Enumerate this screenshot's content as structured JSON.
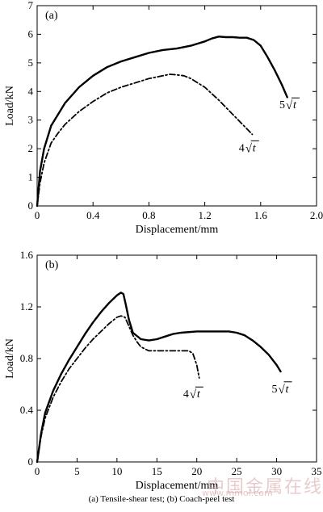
{
  "caption": "(a) Tensile-shear test; (b) Coach-peel test",
  "watermark": {
    "cn": "中国金属在线",
    "domain": "www.mmol.com"
  },
  "chart_data": [
    {
      "type": "line",
      "panel_label": "(a)",
      "xlabel": "Displacement/mm",
      "ylabel": "Load/kN",
      "xlim": [
        0,
        2.0
      ],
      "ylim": [
        0,
        7
      ],
      "xticks": [
        0,
        0.4,
        0.8,
        1.2,
        1.6,
        2.0
      ],
      "xtick_labels": [
        "0",
        "0.4",
        "0.8",
        "1.2",
        "1.6",
        "2.0"
      ],
      "yticks": [
        0,
        1,
        2,
        3,
        4,
        5,
        6,
        7
      ],
      "ytick_labels": [
        "0",
        "1",
        "2",
        "3",
        "4",
        "5",
        "6",
        "7"
      ],
      "grid": false,
      "series": [
        {
          "name": "5√t",
          "style": "solid",
          "x": [
            0,
            0.02,
            0.05,
            0.1,
            0.2,
            0.3,
            0.4,
            0.5,
            0.6,
            0.7,
            0.8,
            0.9,
            1.0,
            1.1,
            1.2,
            1.25,
            1.3,
            1.35,
            1.4,
            1.45,
            1.5,
            1.55,
            1.6,
            1.65,
            1.7,
            1.75,
            1.79
          ],
          "y": [
            0,
            1.2,
            2.0,
            2.8,
            3.6,
            4.15,
            4.55,
            4.85,
            5.05,
            5.2,
            5.35,
            5.45,
            5.5,
            5.6,
            5.75,
            5.85,
            5.92,
            5.9,
            5.9,
            5.88,
            5.88,
            5.8,
            5.6,
            5.2,
            4.75,
            4.25,
            3.8
          ]
        },
        {
          "name": "4√t",
          "style": "dashdot",
          "x": [
            0,
            0.02,
            0.05,
            0.1,
            0.15,
            0.2,
            0.3,
            0.4,
            0.5,
            0.6,
            0.7,
            0.8,
            0.9,
            0.95,
            1.0,
            1.05,
            1.1,
            1.2,
            1.3,
            1.4,
            1.5,
            1.54
          ],
          "y": [
            0,
            0.8,
            1.5,
            2.2,
            2.55,
            2.85,
            3.3,
            3.65,
            3.95,
            4.15,
            4.3,
            4.45,
            4.55,
            4.6,
            4.58,
            4.55,
            4.45,
            4.15,
            3.7,
            3.2,
            2.7,
            2.5
          ]
        }
      ],
      "annotations": [
        {
          "text": "5√t",
          "x": 1.78,
          "y": 3.55
        },
        {
          "text": "4√t",
          "x": 1.49,
          "y": 2.05
        }
      ]
    },
    {
      "type": "line",
      "panel_label": "(b)",
      "xlabel": "Displacement/mm",
      "ylabel": "Load/kN",
      "xlim": [
        0,
        35
      ],
      "ylim": [
        0,
        1.6
      ],
      "xticks": [
        0,
        5,
        10,
        15,
        20,
        25,
        30,
        35
      ],
      "xtick_labels": [
        "0",
        "5",
        "10",
        "15",
        "20",
        "25",
        "30",
        "35"
      ],
      "yticks": [
        0,
        0.4,
        0.8,
        1.2,
        1.6
      ],
      "ytick_labels": [
        "0",
        "0.4",
        "0.8",
        "1.2",
        "1.6"
      ],
      "grid": false,
      "series": [
        {
          "name": "5√t",
          "style": "solid",
          "x": [
            0,
            0.5,
            1,
            2,
            3,
            4,
            5,
            6,
            7,
            8,
            9,
            10,
            10.5,
            10.8,
            11.1,
            11.5,
            12,
            13,
            14,
            15,
            16,
            17,
            18,
            20,
            22,
            24,
            25,
            26,
            27,
            28,
            29,
            30,
            30.5
          ],
          "y": [
            0,
            0.22,
            0.38,
            0.55,
            0.68,
            0.79,
            0.89,
            0.99,
            1.08,
            1.16,
            1.23,
            1.29,
            1.31,
            1.3,
            1.22,
            1.1,
            1.0,
            0.95,
            0.94,
            0.95,
            0.97,
            0.99,
            1.0,
            1.01,
            1.01,
            1.01,
            1.0,
            0.98,
            0.94,
            0.89,
            0.83,
            0.75,
            0.7
          ]
        },
        {
          "name": "4√t",
          "style": "dashdot",
          "x": [
            0,
            0.5,
            1,
            2,
            3,
            4,
            5,
            6,
            7,
            8,
            9,
            10,
            10.5,
            11,
            11.5,
            12,
            12.5,
            13,
            14,
            15,
            16,
            17,
            18,
            19,
            19.5,
            20,
            20.3
          ],
          "y": [
            0,
            0.2,
            0.34,
            0.5,
            0.62,
            0.72,
            0.8,
            0.88,
            0.95,
            1.01,
            1.07,
            1.12,
            1.13,
            1.12,
            1.05,
            0.98,
            0.93,
            0.89,
            0.86,
            0.86,
            0.86,
            0.86,
            0.86,
            0.86,
            0.84,
            0.75,
            0.65
          ]
        }
      ],
      "annotations": [
        {
          "text": "5√t",
          "x": 30.2,
          "y": 0.57
        },
        {
          "text": "4√t",
          "x": 19.1,
          "y": 0.53
        }
      ]
    }
  ]
}
